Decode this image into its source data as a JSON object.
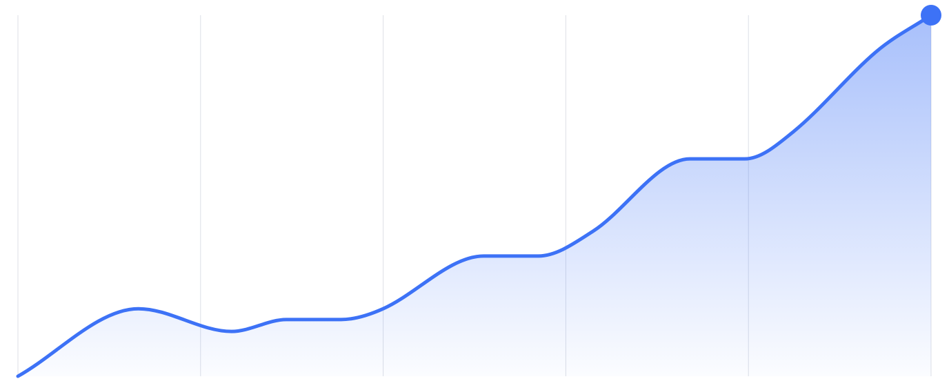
{
  "chart_data": {
    "type": "area",
    "x": [
      0,
      0.66,
      1.17,
      1.47,
      1.77,
      2.0,
      2.55,
      2.85,
      3.15,
      3.68,
      3.98,
      4.25,
      4.7,
      5
    ],
    "values": [
      0,
      18.7,
      12.4,
      15.7,
      15.7,
      18.7,
      33.3,
      33.3,
      40.2,
      60.2,
      60.2,
      67.9,
      89.9,
      100
    ],
    "color": "#3d72f6",
    "xlim": [
      0,
      5
    ],
    "ylim": [
      0,
      100
    ],
    "xticks": [
      0,
      1,
      2,
      3,
      4,
      5
    ],
    "grid": true
  }
}
